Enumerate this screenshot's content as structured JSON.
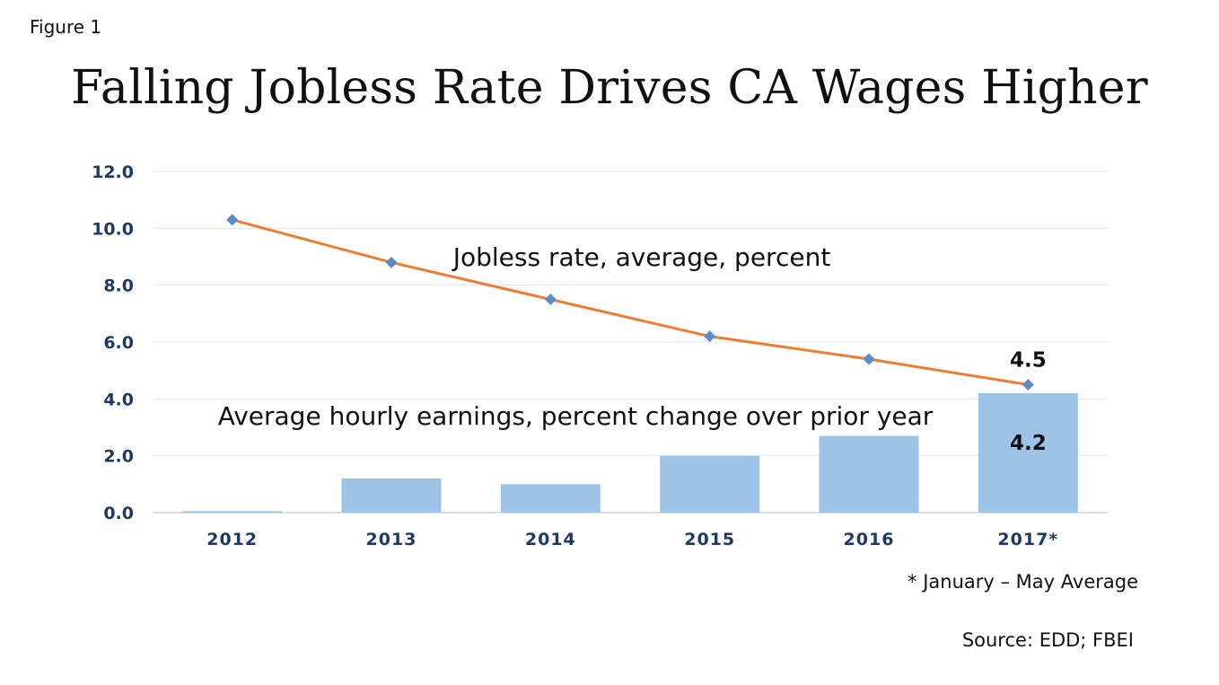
{
  "figure_label": "Figure 1",
  "footnote": "* January – May Average",
  "source": "Source: EDD; FBEI",
  "colors": {
    "bar": "#9DC3E6",
    "line": "#ED7D31",
    "marker": "#5B8BC9",
    "axis_text": "#1F3864",
    "grid": "#E6E6E6"
  },
  "chart_data": {
    "type": "bar",
    "title": "Falling Jobless Rate Drives CA Wages Higher",
    "categories": [
      "2012",
      "2013",
      "2014",
      "2015",
      "2016",
      "2017*"
    ],
    "ylim": [
      0,
      12
    ],
    "yticks": [
      "0.0",
      "2.0",
      "4.0",
      "6.0",
      "8.0",
      "10.0",
      "12.0"
    ],
    "grid": true,
    "series": [
      {
        "name": "Average hourly earnings, percent change over prior year",
        "type": "bar",
        "values": [
          0.05,
          1.2,
          1.0,
          2.0,
          2.7,
          4.2
        ]
      },
      {
        "name": "Jobless rate, average, percent",
        "type": "line",
        "values": [
          10.3,
          8.8,
          7.5,
          6.2,
          5.4,
          4.5
        ]
      }
    ],
    "data_labels": {
      "bar_last": "4.2",
      "line_last": "4.5"
    }
  }
}
